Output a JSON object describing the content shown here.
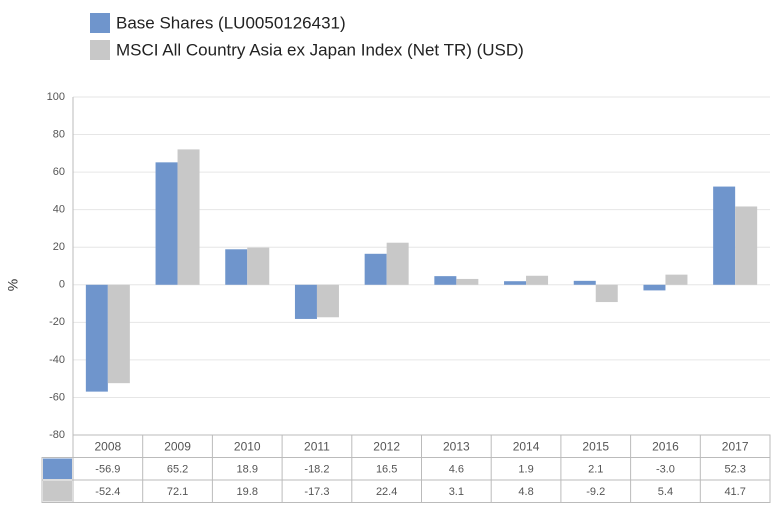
{
  "chart_data": {
    "type": "bar",
    "y_label": "%",
    "categories": [
      "2008",
      "2009",
      "2010",
      "2011",
      "2012",
      "2013",
      "2014",
      "2015",
      "2016",
      "2017"
    ],
    "series": [
      {
        "name": "Base Shares (LU0050126431)",
        "color": "#6f95cc",
        "values": [
          -56.9,
          65.2,
          18.9,
          -18.2,
          16.5,
          4.6,
          1.9,
          2.1,
          -3.0,
          52.3
        ],
        "value_labels": [
          "-56.9",
          "65.2",
          "18.9",
          "-18.2",
          "16.5",
          "4.6",
          "1.9",
          "2.1",
          "-3.0",
          "52.3"
        ]
      },
      {
        "name": "MSCI All Country Asia ex Japan Index (Net TR) (USD)",
        "color": "#c8c8c8",
        "values": [
          -52.4,
          72.1,
          19.8,
          -17.3,
          22.4,
          3.1,
          4.8,
          -9.2,
          5.4,
          41.7
        ],
        "value_labels": [
          "-52.4",
          "72.1",
          "19.8",
          "-17.3",
          "22.4",
          "3.1",
          "4.8",
          "-9.2",
          "5.4",
          "41.7"
        ]
      }
    ],
    "ylim": [
      -80,
      100
    ],
    "yticks": [
      100,
      80,
      60,
      40,
      20,
      0,
      -20,
      -40,
      -60,
      -80
    ],
    "grid": true
  }
}
